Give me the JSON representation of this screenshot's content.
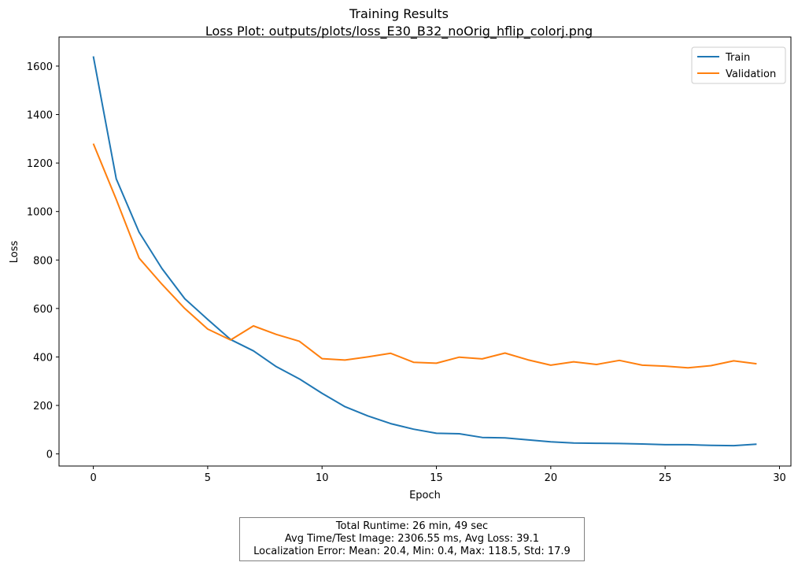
{
  "chart_data": {
    "type": "line",
    "title": "Training Results",
    "subtitle": "Loss Plot: outputs/plots/loss_E30_B32_noOrig_hflip_colorj.png",
    "xlabel": "Epoch",
    "ylabel": "Loss",
    "xlim": [
      -1.5,
      30.5
    ],
    "ylim": [
      -50,
      1720
    ],
    "xticks": [
      0,
      5,
      10,
      15,
      20,
      25,
      30
    ],
    "yticks": [
      0,
      200,
      400,
      600,
      800,
      1000,
      1200,
      1400,
      1600
    ],
    "legend_position": "top-right",
    "grid": false,
    "x": [
      0,
      1,
      2,
      3,
      4,
      5,
      6,
      7,
      8,
      9,
      10,
      11,
      12,
      13,
      14,
      15,
      16,
      17,
      18,
      19,
      20,
      21,
      22,
      23,
      24,
      25,
      26,
      27,
      28,
      29
    ],
    "series": [
      {
        "name": "Train",
        "color": "#1f77b4",
        "values": [
          1640,
          1135,
          915,
          765,
          640,
          555,
          472,
          425,
          360,
          310,
          250,
          195,
          157,
          125,
          102,
          85,
          83,
          68,
          66,
          58,
          50,
          45,
          44,
          43,
          41,
          38,
          38,
          35,
          34,
          40
        ]
      },
      {
        "name": "Validation",
        "color": "#ff7f0e",
        "values": [
          1280,
          1050,
          808,
          700,
          600,
          515,
          470,
          528,
          493,
          465,
          393,
          387,
          400,
          415,
          378,
          374,
          399,
          392,
          416,
          388,
          366,
          380,
          369,
          386,
          366,
          362,
          355,
          364,
          384,
          372
        ]
      }
    ]
  },
  "stats": {
    "line1": "Total Runtime: 26 min, 49 sec",
    "line2": "Avg Time/Test Image: 2306.55 ms, Avg Loss: 39.1",
    "line3": "Localization Error: Mean: 20.4, Min: 0.4, Max: 118.5, Std: 17.9"
  }
}
